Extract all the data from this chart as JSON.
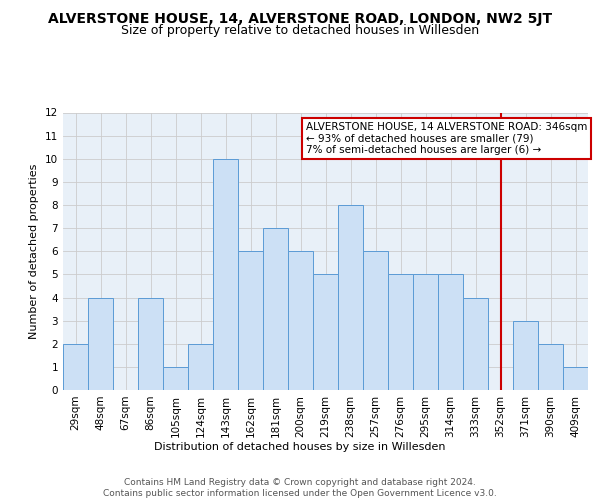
{
  "title": "ALVERSTONE HOUSE, 14, ALVERSTONE ROAD, LONDON, NW2 5JT",
  "subtitle": "Size of property relative to detached houses in Willesden",
  "xlabel": "Distribution of detached houses by size in Willesden",
  "ylabel": "Number of detached properties",
  "bar_labels": [
    "29sqm",
    "48sqm",
    "67sqm",
    "86sqm",
    "105sqm",
    "124sqm",
    "143sqm",
    "162sqm",
    "181sqm",
    "200sqm",
    "219sqm",
    "238sqm",
    "257sqm",
    "276sqm",
    "295sqm",
    "314sqm",
    "333sqm",
    "352sqm",
    "371sqm",
    "390sqm",
    "409sqm"
  ],
  "bar_heights": [
    2,
    4,
    0,
    4,
    1,
    2,
    10,
    6,
    7,
    6,
    5,
    8,
    6,
    5,
    5,
    5,
    4,
    0,
    3,
    2,
    1
  ],
  "bar_color": "#cce0f5",
  "bar_edge_color": "#5b9bd5",
  "annotation_text": "ALVERSTONE HOUSE, 14 ALVERSTONE ROAD: 346sqm\n← 93% of detached houses are smaller (79)\n7% of semi-detached houses are larger (6) →",
  "vline_index": 17,
  "vline_color": "#cc0000",
  "annotation_box_color": "#cc0000",
  "ylim": [
    0,
    12
  ],
  "yticks": [
    0,
    1,
    2,
    3,
    4,
    5,
    6,
    7,
    8,
    9,
    10,
    11,
    12
  ],
  "grid_color": "#cccccc",
  "footer_text": "Contains HM Land Registry data © Crown copyright and database right 2024.\nContains public sector information licensed under the Open Government Licence v3.0.",
  "bg_color": "#e8f0f8",
  "title_fontsize": 10,
  "subtitle_fontsize": 9,
  "axis_fontsize": 8,
  "tick_fontsize": 7.5,
  "annotation_fontsize": 7.5,
  "footer_fontsize": 6.5
}
